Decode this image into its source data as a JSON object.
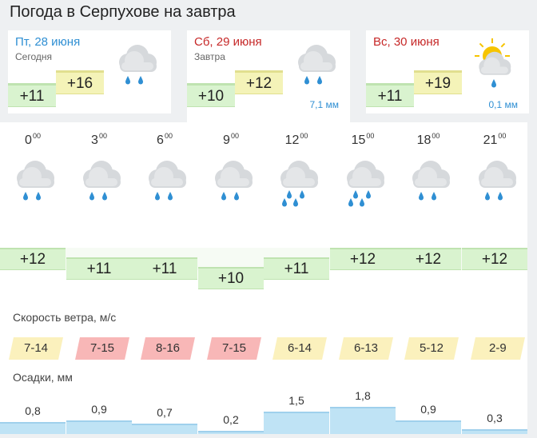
{
  "title": "Погода в Серпухове на завтра",
  "days": [
    {
      "name": "Пт, 28 июня",
      "sub": "Сегодня",
      "tmin": "+11",
      "tmax": "+16",
      "precip": "",
      "icon": "rain-cloud-icon",
      "color": "#2f8fd3",
      "active": false
    },
    {
      "name": "Сб, 29 июня",
      "sub": "Завтра",
      "tmin": "+10",
      "tmax": "+12",
      "precip": "7,1 мм",
      "icon": "rain-cloud-icon",
      "color": "#c62828",
      "active": true
    },
    {
      "name": "Вс, 30 июня",
      "sub": "",
      "tmin": "+11",
      "tmax": "+19",
      "precip": "0,1 мм",
      "icon": "sun-cloud-rain-icon",
      "color": "#c62828",
      "active": false
    }
  ],
  "hourly": {
    "hours": [
      {
        "h": "0",
        "sup": "00",
        "temp": "+12",
        "rain": 2
      },
      {
        "h": "3",
        "sup": "00",
        "temp": "+11",
        "rain": 2
      },
      {
        "h": "6",
        "sup": "00",
        "temp": "+11",
        "rain": 2
      },
      {
        "h": "9",
        "sup": "00",
        "temp": "+10",
        "rain": 2
      },
      {
        "h": "12",
        "sup": "00",
        "temp": "+11",
        "rain": 3
      },
      {
        "h": "15",
        "sup": "00",
        "temp": "+12",
        "rain": 3
      },
      {
        "h": "18",
        "sup": "00",
        "temp": "+12",
        "rain": 2
      },
      {
        "h": "21",
        "sup": "00",
        "temp": "+12",
        "rain": 2
      }
    ],
    "temp_levels": [
      12,
      11,
      11,
      10,
      11,
      12,
      12,
      12
    ]
  },
  "wind": {
    "label": "Скорость ветра, м/с",
    "values": [
      {
        "text": "7-14",
        "level": "yellow"
      },
      {
        "text": "7-15",
        "level": "red"
      },
      {
        "text": "8-16",
        "level": "red"
      },
      {
        "text": "7-15",
        "level": "red"
      },
      {
        "text": "6-14",
        "level": "yellow"
      },
      {
        "text": "6-13",
        "level": "yellow"
      },
      {
        "text": "5-12",
        "level": "yellow"
      },
      {
        "text": "2-9",
        "level": "yellow"
      }
    ]
  },
  "precipitation": {
    "label": "Осадки, мм",
    "values": [
      "0,8",
      "0,9",
      "0,7",
      "0,2",
      "1,5",
      "1,8",
      "0,9",
      "0,3"
    ],
    "amounts": [
      0.8,
      0.9,
      0.7,
      0.2,
      1.5,
      1.8,
      0.9,
      0.3
    ]
  },
  "colors": {
    "rain": "#2f8fd3",
    "cloud": "#d6d9dc",
    "sun": "#f6c400",
    "temp_green": "#d9f3cf",
    "temp_yellow": "#f4f3b8"
  }
}
